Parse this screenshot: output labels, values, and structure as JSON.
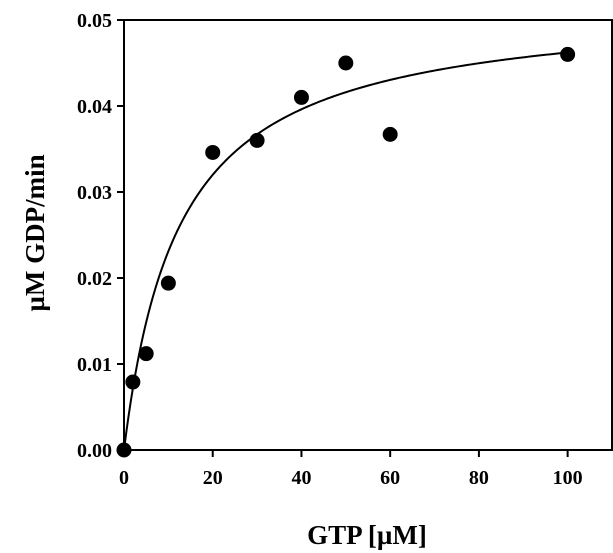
{
  "chart_data": {
    "type": "scatter",
    "title": "",
    "xlabel": "GTP [µM]",
    "ylabel": "µM GDP/min",
    "xlim": [
      0,
      110
    ],
    "ylim": [
      0,
      0.05
    ],
    "x_ticks": [
      "0",
      "20",
      "40",
      "60",
      "80",
      "100"
    ],
    "y_ticks": [
      "0.00",
      "0.01",
      "0.02",
      "0.03",
      "0.04",
      "0.05"
    ],
    "grid": false,
    "legend": "none",
    "points": [
      {
        "x": 0,
        "y": 0.0
      },
      {
        "x": 2,
        "y": 0.0079
      },
      {
        "x": 5,
        "y": 0.0112
      },
      {
        "x": 10,
        "y": 0.0194
      },
      {
        "x": 20,
        "y": 0.0346
      },
      {
        "x": 30,
        "y": 0.036
      },
      {
        "x": 40,
        "y": 0.041
      },
      {
        "x": 50,
        "y": 0.045
      },
      {
        "x": 60,
        "y": 0.0367
      },
      {
        "x": 100,
        "y": 0.046
      }
    ],
    "fit_curve": {
      "model": "michaelis-menten",
      "vmax": 0.052,
      "km": 12.5
    },
    "colors": {
      "axis": "#000000",
      "marker": "#000000",
      "curve": "#000000"
    }
  }
}
